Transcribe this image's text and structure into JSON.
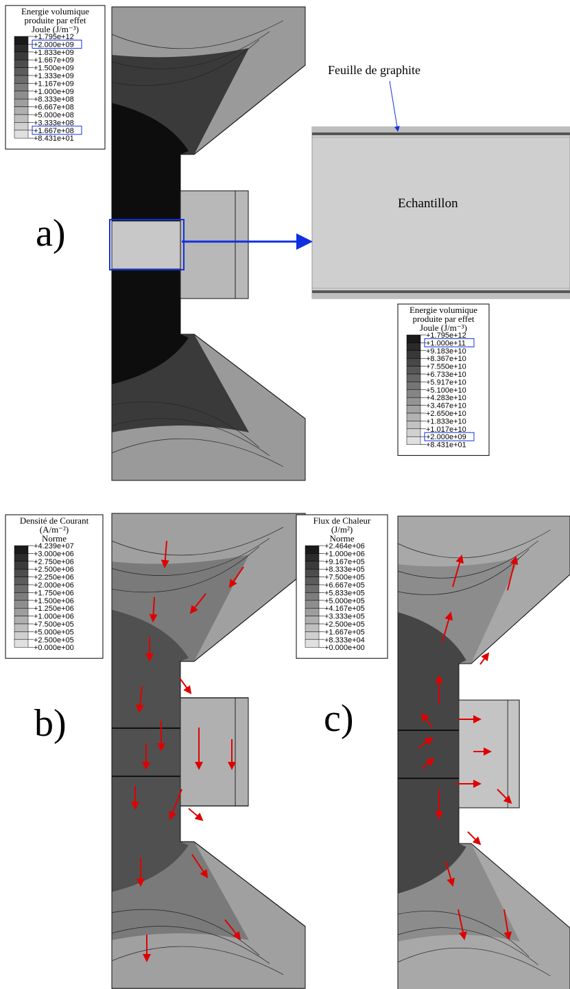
{
  "panel_a": {
    "label": "a)",
    "legend": {
      "title": [
        "Energie volumique",
        "produite par effet",
        "Joule (J/m⁻³)"
      ],
      "entries": [
        "+1.795e+12",
        "+2.000e+09",
        "+1.833e+09",
        "+1.667e+09",
        "+1.500e+09",
        "+1.333e+09",
        "+1.167e+09",
        "+1.000e+09",
        "+8.333e+08",
        "+6.667e+08",
        "+5.000e+08",
        "+3.333e+08",
        "+1.667e+08",
        "+8.431e+01"
      ]
    },
    "zoom": {
      "annotation": "Feuille de graphite",
      "sample_label": "Echantillon",
      "legend": {
        "title": [
          "Energie volumique",
          "produite par effet",
          "Joule (J/m⁻³)"
        ],
        "entries": [
          "+1.795e+12",
          "+1.000e+11",
          "+9.183e+10",
          "+8.367e+10",
          "+7.550e+10",
          "+6.733e+10",
          "+5.917e+10",
          "+5.100e+10",
          "+4.283e+10",
          "+3.467e+10",
          "+2.650e+10",
          "+1.833e+10",
          "+1.017e+10",
          "+2.000e+09",
          "+8.431e+01"
        ]
      }
    }
  },
  "panel_b": {
    "label": "b)",
    "legend": {
      "title": [
        "Densité de Courant",
        "(A/m⁻²)",
        "Norme"
      ],
      "entries": [
        "+4.239e+07",
        "+3.000e+06",
        "+2.750e+06",
        "+2.500e+06",
        "+2.250e+06",
        "+2.000e+06",
        "+1.750e+06",
        "+1.500e+06",
        "+1.250e+06",
        "+1.000e+06",
        "+7.500e+05",
        "+5.000e+05",
        "+2.500e+05",
        "+0.000e+00"
      ]
    }
  },
  "panel_c": {
    "label": "c)",
    "legend": {
      "title": [
        "Flux de Chaleur",
        "(J/m²)",
        "Norme"
      ],
      "entries": [
        "+2.464e+06",
        "+1.000e+06",
        "+9.167e+05",
        "+8.333e+05",
        "+7.500e+05",
        "+6.667e+05",
        "+5.833e+05",
        "+5.000e+05",
        "+4.167e+05",
        "+3.333e+05",
        "+2.500e+05",
        "+1.667e+05",
        "+8.333e+04",
        "+0.000e+00"
      ]
    }
  }
}
